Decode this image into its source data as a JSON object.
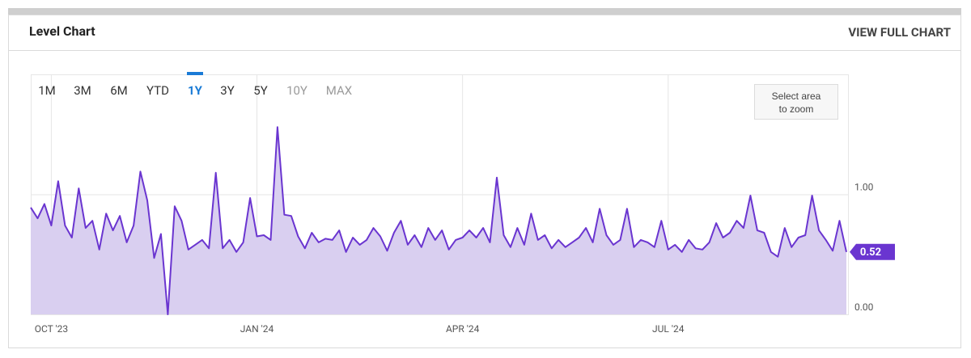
{
  "header": {
    "title": "Level Chart",
    "link": "VIEW FULL CHART"
  },
  "range_buttons": [
    {
      "label": "1M",
      "state": "enabled"
    },
    {
      "label": "3M",
      "state": "enabled"
    },
    {
      "label": "6M",
      "state": "enabled"
    },
    {
      "label": "YTD",
      "state": "enabled"
    },
    {
      "label": "1Y",
      "state": "active"
    },
    {
      "label": "3Y",
      "state": "enabled"
    },
    {
      "label": "5Y",
      "state": "enabled"
    },
    {
      "label": "10Y",
      "state": "disabled"
    },
    {
      "label": "MAX",
      "state": "disabled"
    }
  ],
  "zoom_hint": "Select area to zoom",
  "chart_data": {
    "type": "area",
    "categories": [
      null,
      null,
      null,
      "OCT '23",
      null,
      null,
      null,
      null,
      null,
      null,
      null,
      null,
      null,
      null,
      null,
      null,
      null,
      null,
      null,
      null,
      null,
      null,
      null,
      null,
      null,
      null,
      null,
      null,
      null,
      null,
      null,
      null,
      null,
      "JAN '24",
      null,
      null,
      null,
      null,
      null,
      null,
      null,
      null,
      null,
      null,
      null,
      null,
      null,
      null,
      null,
      null,
      null,
      null,
      null,
      null,
      null,
      null,
      null,
      null,
      null,
      null,
      null,
      null,
      null,
      "APR '24",
      null,
      null,
      null,
      null,
      null,
      null,
      null,
      null,
      null,
      null,
      null,
      null,
      null,
      null,
      null,
      null,
      null,
      null,
      null,
      null,
      null,
      null,
      null,
      null,
      null,
      null,
      null,
      null,
      null,
      "JUL '24",
      null,
      null,
      null,
      null,
      null,
      null,
      null,
      null,
      null,
      null,
      null,
      null,
      null,
      null,
      null,
      null,
      null,
      null,
      null,
      null,
      null,
      null,
      null,
      null,
      null,
      null
    ],
    "series": [
      {
        "name": "Level",
        "color": "#6a35d0",
        "fill": "#d9cff0",
        "values": [
          0.89,
          0.8,
          0.92,
          0.74,
          1.11,
          0.74,
          0.64,
          1.05,
          0.72,
          0.78,
          0.54,
          0.84,
          0.7,
          0.82,
          0.6,
          0.74,
          1.19,
          0.95,
          0.47,
          0.67,
          0.0,
          0.9,
          0.78,
          0.54,
          0.58,
          0.62,
          0.55,
          1.18,
          0.55,
          0.62,
          0.52,
          0.6,
          0.97,
          0.65,
          0.66,
          0.62,
          1.56,
          0.83,
          0.82,
          0.65,
          0.55,
          0.68,
          0.6,
          0.63,
          0.62,
          0.7,
          0.52,
          0.64,
          0.58,
          0.62,
          0.72,
          0.65,
          0.53,
          0.68,
          0.78,
          0.58,
          0.66,
          0.56,
          0.72,
          0.62,
          0.7,
          0.54,
          0.62,
          0.64,
          0.7,
          0.64,
          0.72,
          0.6,
          1.14,
          0.66,
          0.56,
          0.72,
          0.58,
          0.84,
          0.62,
          0.66,
          0.55,
          0.62,
          0.56,
          0.6,
          0.64,
          0.72,
          0.6,
          0.88,
          0.66,
          0.58,
          0.62,
          0.88,
          0.56,
          0.62,
          0.6,
          0.56,
          0.78,
          0.54,
          0.58,
          0.52,
          0.62,
          0.55,
          0.54,
          0.6,
          0.76,
          0.64,
          0.68,
          0.78,
          0.72,
          0.99,
          0.7,
          0.68,
          0.52,
          0.48,
          0.72,
          0.56,
          0.64,
          0.66,
          0.99,
          0.7,
          0.62,
          0.53,
          0.78,
          0.52
        ]
      }
    ],
    "ylim": [
      0,
      2
    ],
    "yticks": [
      {
        "value": 0,
        "label": "0.00"
      },
      {
        "value": 1,
        "label": "1.00"
      }
    ],
    "grid": true
  }
}
